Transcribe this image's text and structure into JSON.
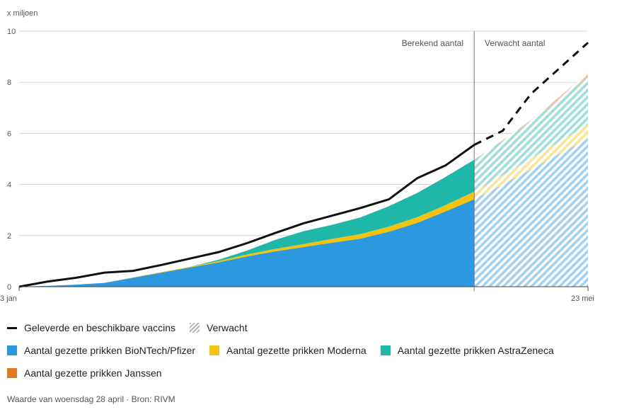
{
  "chart_data": {
    "type": "area",
    "unit_label": "x miljoen",
    "y_ticks": [
      0,
      2,
      4,
      6,
      8,
      10
    ],
    "ylim": [
      0,
      10
    ],
    "xlim": [
      0,
      140
    ],
    "x_tick_labels": [
      {
        "x": 0,
        "label": "3 jan"
      },
      {
        "x": 140,
        "label": "23 mei"
      }
    ],
    "divider_x": 112,
    "phase_labels": {
      "computed": "Berekend aantal",
      "expected": "Verwacht aantal"
    },
    "x": [
      0,
      7,
      14,
      21,
      28,
      35,
      42,
      49,
      56,
      63,
      70,
      77,
      84,
      91,
      98,
      105,
      112,
      119,
      126,
      133,
      140
    ],
    "series": [
      {
        "name": "Aantal gezette prikken BioNTech/Pfizer",
        "color": "#2b98e0",
        "values": [
          0,
          0.03,
          0.08,
          0.15,
          0.35,
          0.55,
          0.75,
          0.95,
          1.18,
          1.38,
          1.55,
          1.72,
          1.88,
          2.15,
          2.5,
          2.95,
          3.42,
          4.0,
          4.6,
          5.2,
          5.8
        ]
      },
      {
        "name": "Aantal gezette prikken Moderna",
        "color": "#f5c211",
        "values": [
          0,
          0,
          0,
          0,
          0.01,
          0.02,
          0.03,
          0.05,
          0.08,
          0.1,
          0.12,
          0.15,
          0.18,
          0.2,
          0.22,
          0.25,
          0.3,
          0.36,
          0.42,
          0.48,
          0.55
        ]
      },
      {
        "name": "Aantal gezette prikken AstraZeneca",
        "color": "#1fb8a8",
        "values": [
          0,
          0,
          0,
          0,
          0,
          0,
          0,
          0.05,
          0.15,
          0.35,
          0.5,
          0.55,
          0.65,
          0.8,
          0.95,
          1.1,
          1.25,
          1.35,
          1.45,
          1.65,
          1.85
        ]
      },
      {
        "name": "Aantal gezette prikken Janssen",
        "color": "#e07a24",
        "values": [
          0,
          0,
          0,
          0,
          0,
          0,
          0,
          0,
          0,
          0,
          0,
          0,
          0,
          0,
          0,
          0,
          0,
          0.02,
          0.05,
          0.1,
          0.18
        ]
      }
    ],
    "delivered": {
      "name": "Geleverde en beschikbare vaccins",
      "color": "#111111",
      "x": [
        0,
        7,
        14,
        21,
        28,
        35,
        42,
        49,
        56,
        63,
        70,
        77,
        84,
        91,
        98,
        105,
        112,
        119,
        126,
        133,
        140
      ],
      "values": [
        0,
        0.2,
        0.35,
        0.55,
        0.62,
        0.85,
        1.1,
        1.35,
        1.7,
        2.1,
        2.48,
        2.78,
        3.08,
        3.42,
        4.25,
        4.75,
        5.55,
        6.1,
        7.55,
        8.55,
        9.55
      ]
    },
    "expected_legend": "Verwacht"
  },
  "footer": {
    "source": "Waarde van woensdag 28 april · Bron: RIVM"
  }
}
